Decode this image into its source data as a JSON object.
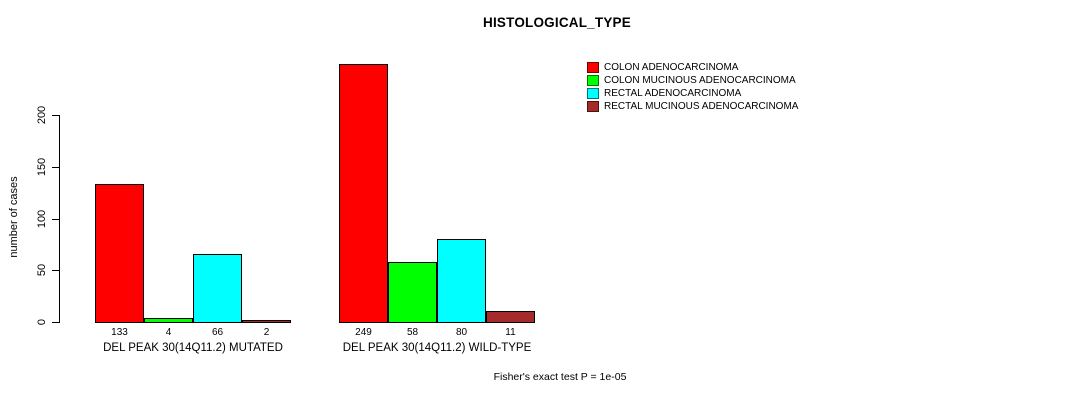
{
  "chart_data": {
    "type": "bar",
    "title": "HISTOLOGICAL_TYPE",
    "ylabel": "number of cases",
    "xlabel": "",
    "ylim": [
      0,
      200
    ],
    "yticks": [
      0,
      50,
      100,
      150,
      200
    ],
    "grid": false,
    "legend_position": "top-right",
    "categories": [
      "DEL PEAK 30(14Q11.2) MUTATED",
      "DEL PEAK 30(14Q11.2) WILD-TYPE"
    ],
    "series": [
      {
        "name": "COLON ADENOCARCINOMA",
        "color": "#FF0000",
        "values": [
          133,
          249
        ]
      },
      {
        "name": "COLON MUCINOUS ADENOCARCINOMA",
        "color": "#00FF00",
        "values": [
          4,
          58
        ]
      },
      {
        "name": "RECTAL ADENOCARCINOMA",
        "color": "#00FFFF",
        "values": [
          66,
          80
        ]
      },
      {
        "name": "RECTAL MUCINOUS ADENOCARCINOMA",
        "color": "#A52A2A",
        "values": [
          2,
          11
        ]
      }
    ],
    "bar_value_labels": [
      [
        133,
        4,
        66,
        2
      ],
      [
        249,
        58,
        80,
        11
      ]
    ],
    "annotation": "Fisher's exact test P = 1e-05"
  }
}
